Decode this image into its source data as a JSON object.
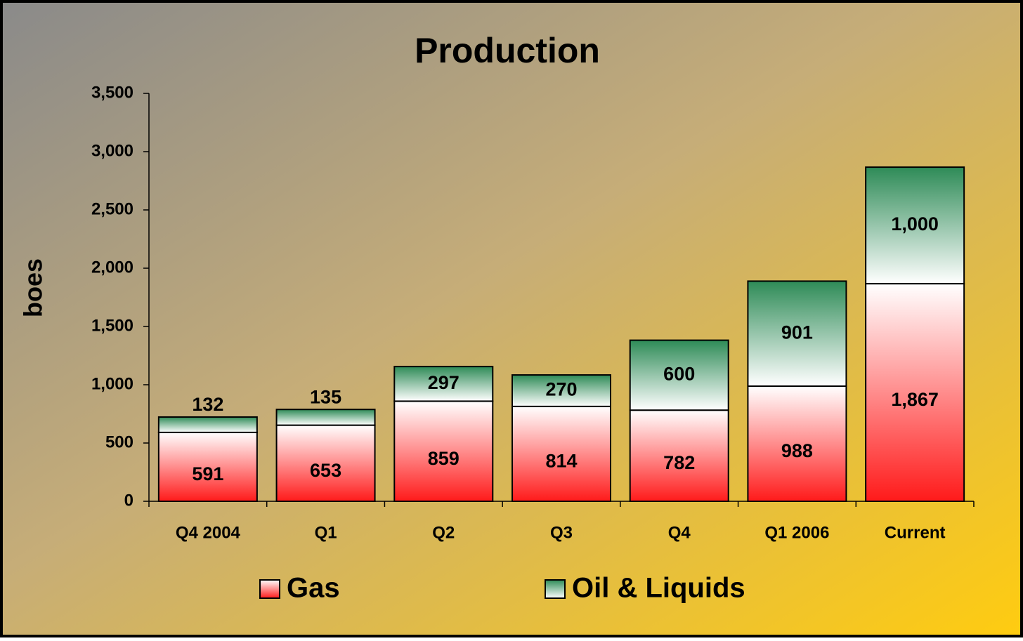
{
  "chart_data": {
    "type": "stacked_bar",
    "title": "Production",
    "y_label": "boes",
    "categories": [
      "Q4 2004",
      "Q1",
      "Q2",
      "Q3",
      "Q4",
      "Q1 2006",
      "Current"
    ],
    "series": [
      {
        "name": "Gas",
        "color": "#ff1a1a",
        "values": [
          591,
          653,
          859,
          814,
          782,
          988,
          1867
        ],
        "value_labels": [
          "591",
          "653",
          "859",
          "814",
          "782",
          "988",
          "1,867"
        ]
      },
      {
        "name": "Oil & Liquids",
        "color": "#2e8b57",
        "values": [
          132,
          135,
          297,
          270,
          600,
          901,
          1000
        ],
        "value_labels": [
          "132",
          "135",
          "297",
          "270",
          "600",
          "901",
          "1,000"
        ]
      }
    ],
    "ylim": [
      0,
      3500
    ],
    "yticks": [
      0,
      500,
      {
        "value": 1000,
        "label": "1,000"
      },
      {
        "value": 1500,
        "label": "1,500"
      },
      {
        "value": 2000,
        "label": "2,000"
      },
      {
        "value": 2500,
        "label": "2,500"
      },
      {
        "value": 3000,
        "label": "3,000"
      },
      {
        "value": 3500,
        "label": "3,500"
      }
    ],
    "legend": "bottom"
  }
}
